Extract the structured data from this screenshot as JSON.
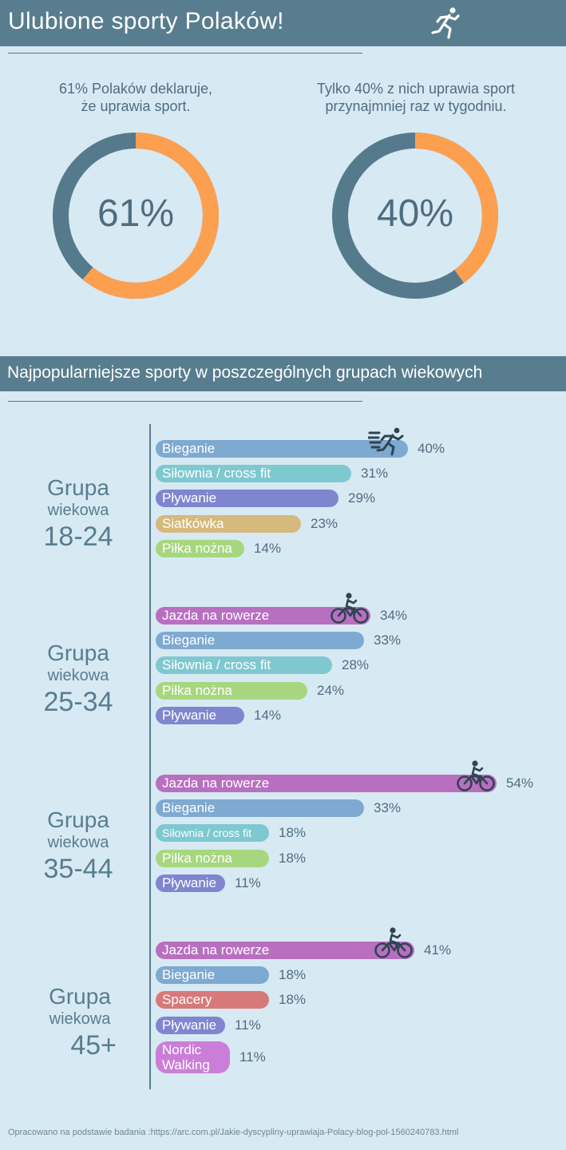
{
  "header": {
    "title": "Ulubione sporty Polaków!",
    "icon": "runner-icon"
  },
  "stats": [
    {
      "caption_line1": "61% Polaków deklaruje,",
      "caption_line2": "że uprawia sport.",
      "label": "61%",
      "value": 61
    },
    {
      "caption_line1": "Tylko 40% z nich uprawia sport",
      "caption_line2": "przynajmniej raz w tygodniu.",
      "label": "40%",
      "value": 40
    }
  ],
  "colors": {
    "header_bg": "#587d8f",
    "donut_fill": "#fca04f",
    "donut_rest": "#557a8c",
    "bieganie": "#7ea9d1",
    "silownia": "#7ec9d0",
    "plywanie": "#7f86cf",
    "siatkowka": "#d5b97d",
    "pilka": "#a6d77f",
    "rower": "#b86fc0",
    "spacery": "#d87979",
    "nordic": "#cb7ed8"
  },
  "section": {
    "title": "Najpopularniejsze sporty w poszczególnych grupach wiekowych"
  },
  "chart_data": {
    "type": "bar",
    "orientation": "horizontal",
    "title": "Najpopularniejsze sporty w poszczególnych grupach wiekowych",
    "unit": "%",
    "groups": [
      {
        "label_line1": "Grupa",
        "label_line2": "wiekowa",
        "label_line3": "18-24",
        "bars": [
          {
            "name": "Bieganie",
            "value": 40,
            "value_label": "40%",
            "color_key": "bieganie",
            "icon": "runner-speed-icon"
          },
          {
            "name": "Siłownia / cross fit",
            "value": 31,
            "value_label": "31%",
            "color_key": "silownia"
          },
          {
            "name": "Pływanie",
            "value": 29,
            "value_label": "29%",
            "color_key": "plywanie"
          },
          {
            "name": "Siatkówka",
            "value": 23,
            "value_label": "23%",
            "color_key": "siatkowka"
          },
          {
            "name": "Piłka nożna",
            "value": 14,
            "value_label": "14%",
            "color_key": "pilka"
          }
        ]
      },
      {
        "label_line1": "Grupa",
        "label_line2": "wiekowa",
        "label_line3": "25-34",
        "bars": [
          {
            "name": "Jazda na rowerze",
            "value": 34,
            "value_label": "34%",
            "color_key": "rower",
            "icon": "cyclist-icon"
          },
          {
            "name": "Bieganie",
            "value": 33,
            "value_label": "33%",
            "color_key": "bieganie"
          },
          {
            "name": "Siłownia / cross fit",
            "value": 28,
            "value_label": "28%",
            "color_key": "silownia"
          },
          {
            "name": "Piłka nożna",
            "value": 24,
            "value_label": "24%",
            "color_key": "pilka"
          },
          {
            "name": "Pływanie",
            "value": 14,
            "value_label": "14%",
            "color_key": "plywanie"
          }
        ]
      },
      {
        "label_line1": "Grupa",
        "label_line2": "wiekowa",
        "label_line3": "35-44",
        "bars": [
          {
            "name": "Jazda na rowerze",
            "value": 54,
            "value_label": "54%",
            "color_key": "rower",
            "icon": "cyclist-icon"
          },
          {
            "name": "Bieganie",
            "value": 33,
            "value_label": "33%",
            "color_key": "bieganie"
          },
          {
            "name": "Siłownia / cross fit",
            "value": 18,
            "value_label": "18%",
            "color_key": "silownia"
          },
          {
            "name": "Piłka nożna",
            "value": 18,
            "value_label": "18%",
            "color_key": "pilka"
          },
          {
            "name": "Pływanie",
            "value": 11,
            "value_label": "11%",
            "color_key": "plywanie"
          }
        ]
      },
      {
        "label_line1": "Grupa",
        "label_line2": "wiekowa",
        "label_line3": "45+",
        "bars": [
          {
            "name": "Jazda na rowerze",
            "value": 41,
            "value_label": "41%",
            "color_key": "rower",
            "icon": "cyclist-icon"
          },
          {
            "name": "Bieganie",
            "value": 18,
            "value_label": "18%",
            "color_key": "bieganie"
          },
          {
            "name": "Spacery",
            "value": 18,
            "value_label": "18%",
            "color_key": "spacery"
          },
          {
            "name": "Pływanie",
            "value": 11,
            "value_label": "11%",
            "color_key": "plywanie"
          },
          {
            "name": "Nordic Walking",
            "value": 11,
            "value_label": "11%",
            "color_key": "nordic"
          }
        ]
      }
    ]
  },
  "footer": {
    "text": "Opracowano na podstawie badania :https://arc.com.pl/Jakie-dyscypliny-uprawiaja-Polacy-blog-pol-1560240783.html"
  }
}
